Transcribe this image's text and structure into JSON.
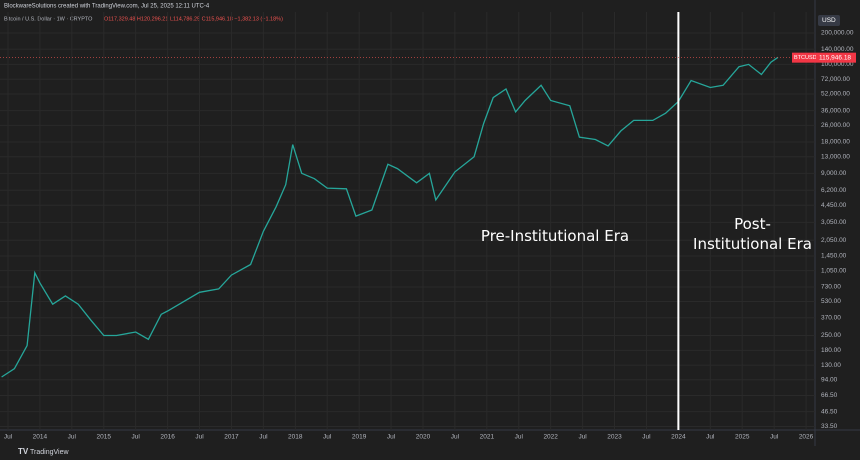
{
  "chart_data": {
    "type": "line",
    "title": "BlockwareSolutions created with TradingView.com, Jul 25, 2025 12:11 UTC-4",
    "subtitle": "Bitcoin / U.S. Dollar · 1W · CRYPTO",
    "ohlc": "O117,329.48 H120,296.21 L114,786.25 C115,946.18 −1,382.13 (−1.18%)",
    "currency": "USD",
    "symbol": "BTCUSD",
    "last_price": {
      "value": 115946.18,
      "label": "115,946.18"
    },
    "annotations": [
      "Pre-Institutional Era",
      "Post-Institutional Era"
    ],
    "divider_x": 2024.0,
    "logo": "TradingView",
    "color": "#26a69a",
    "divider_color": "#ffffff",
    "log_y": true,
    "grid": true,
    "x": [
      2013.4,
      2013.6,
      2013.8,
      2013.92,
      2014.0,
      2014.2,
      2014.4,
      2014.6,
      2014.8,
      2015.0,
      2015.2,
      2015.5,
      2015.7,
      2015.9,
      2016.0,
      2016.5,
      2016.8,
      2017.0,
      2017.3,
      2017.5,
      2017.7,
      2017.85,
      2017.96,
      2018.1,
      2018.3,
      2018.5,
      2018.8,
      2018.95,
      2019.2,
      2019.45,
      2019.6,
      2019.9,
      2020.1,
      2020.2,
      2020.5,
      2020.8,
      2020.95,
      2021.1,
      2021.3,
      2021.45,
      2021.6,
      2021.85,
      2022.0,
      2022.3,
      2022.45,
      2022.7,
      2022.9,
      2023.1,
      2023.3,
      2023.6,
      2023.8,
      2024.0,
      2024.2,
      2024.5,
      2024.7,
      2024.95,
      2025.1,
      2025.3,
      2025.45,
      2025.56
    ],
    "values": [
      100,
      120,
      200,
      1000,
      800,
      500,
      600,
      500,
      350,
      250,
      250,
      270,
      230,
      400,
      430,
      650,
      700,
      950,
      1200,
      2500,
      4300,
      7000,
      17000,
      9000,
      8000,
      6500,
      6400,
      3500,
      4000,
      11000,
      10000,
      7300,
      9000,
      5000,
      9300,
      13000,
      27000,
      48000,
      58000,
      35000,
      45000,
      63000,
      45000,
      40000,
      20000,
      19000,
      16500,
      23000,
      29000,
      29000,
      34000,
      44000,
      70000,
      60000,
      63000,
      95000,
      100000,
      80000,
      105000,
      117000
    ],
    "xlim": [
      2013.375,
      2026.14
    ],
    "xticks": [
      {
        "value": 2013.5,
        "label": "Jul"
      },
      {
        "value": 2014,
        "label": "2014"
      },
      {
        "value": 2014.5,
        "label": "Jul"
      },
      {
        "value": 2015,
        "label": "2015"
      },
      {
        "value": 2015.5,
        "label": "Jul"
      },
      {
        "value": 2016,
        "label": "2016"
      },
      {
        "value": 2016.5,
        "label": "Jul"
      },
      {
        "value": 2017,
        "label": "2017"
      },
      {
        "value": 2017.5,
        "label": "Jul"
      },
      {
        "value": 2018,
        "label": "2018"
      },
      {
        "value": 2018.5,
        "label": "Jul"
      },
      {
        "value": 2019,
        "label": "2019"
      },
      {
        "value": 2019.5,
        "label": "Jul"
      },
      {
        "value": 2020,
        "label": "2020"
      },
      {
        "value": 2020.5,
        "label": "Jul"
      },
      {
        "value": 2021,
        "label": "2021"
      },
      {
        "value": 2021.5,
        "label": "Jul"
      },
      {
        "value": 2022,
        "label": "2022"
      },
      {
        "value": 2022.5,
        "label": "Jul"
      },
      {
        "value": 2023,
        "label": "2023"
      },
      {
        "value": 2023.5,
        "label": "Jul"
      },
      {
        "value": 2024,
        "label": "2024"
      },
      {
        "value": 2024.5,
        "label": "Jul"
      },
      {
        "value": 2025,
        "label": "2025"
      },
      {
        "value": 2025.5,
        "label": "Jul"
      },
      {
        "value": 2026,
        "label": "2026"
      }
    ],
    "ylim": [
      31,
      318000
    ],
    "yticks": [
      {
        "value": 200000,
        "label": "200,000.00"
      },
      {
        "value": 140000,
        "label": "140,000.00"
      },
      {
        "value": 100000,
        "label": "100,000.00"
      },
      {
        "value": 72000,
        "label": "72,000.00"
      },
      {
        "value": 52000,
        "label": "52,000.00"
      },
      {
        "value": 36000,
        "label": "36,000.00"
      },
      {
        "value": 26000,
        "label": "26,000.00"
      },
      {
        "value": 18000,
        "label": "18,000.00"
      },
      {
        "value": 13000,
        "label": "13,000.00"
      },
      {
        "value": 9000,
        "label": "9,000.00"
      },
      {
        "value": 6200,
        "label": "6,200.00"
      },
      {
        "value": 4450,
        "label": "4,450.00"
      },
      {
        "value": 3050,
        "label": "3,050.00"
      },
      {
        "value": 2050,
        "label": "2,050.00"
      },
      {
        "value": 1450,
        "label": "1,450.00"
      },
      {
        "value": 1050,
        "label": "1,050.00"
      },
      {
        "value": 730,
        "label": "730.00"
      },
      {
        "value": 530,
        "label": "530.00"
      },
      {
        "value": 370,
        "label": "370.00"
      },
      {
        "value": 250,
        "label": "250.00"
      },
      {
        "value": 180,
        "label": "180.00"
      },
      {
        "value": 130,
        "label": "130.00"
      },
      {
        "value": 94,
        "label": "94.00"
      },
      {
        "value": 66.5,
        "label": "66.50"
      },
      {
        "value": 46.5,
        "label": "46.50"
      },
      {
        "value": 33.5,
        "label": "33.50"
      }
    ]
  }
}
